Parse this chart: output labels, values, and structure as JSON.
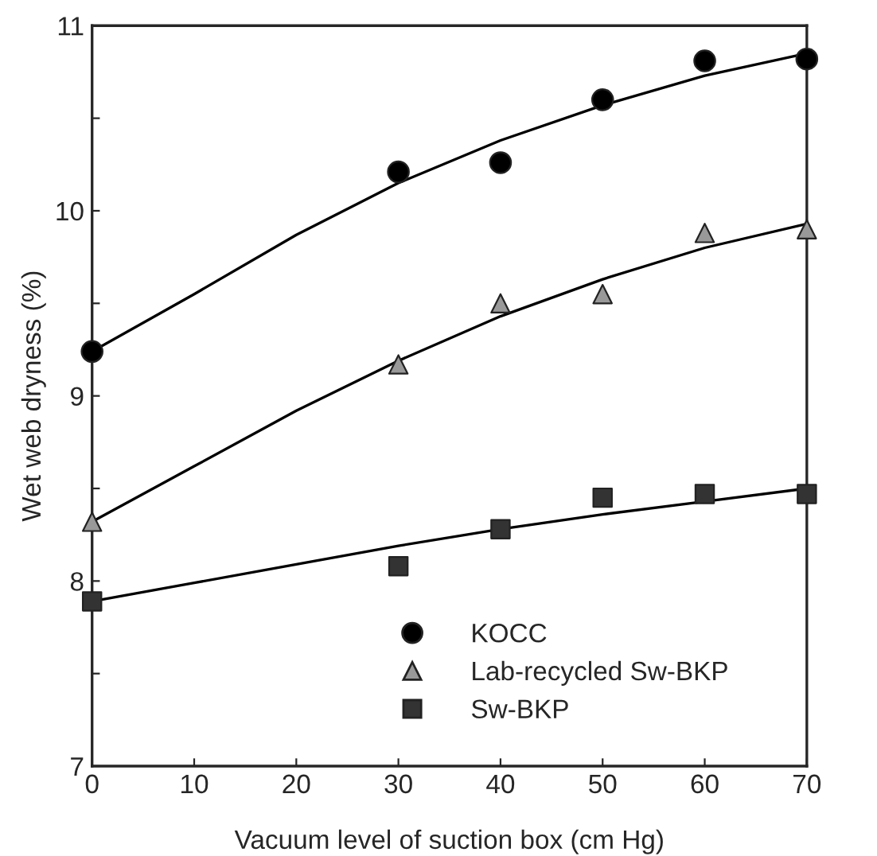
{
  "chart_data": {
    "type": "scatter",
    "xlabel": "Vacuum level of suction box (cm Hg)",
    "ylabel": "Wet web dryness (%)",
    "x": [
      0,
      30,
      40,
      50,
      60,
      70
    ],
    "series": [
      {
        "name": "KOCC",
        "color": "#000000",
        "marker": "circle",
        "values": [
          9.24,
          10.21,
          10.26,
          10.6,
          10.81,
          10.82
        ]
      },
      {
        "name": "Lab-recycled Sw-BKP",
        "color": "#999999",
        "marker": "triangle",
        "values": [
          8.32,
          9.17,
          9.5,
          9.55,
          9.88,
          9.9
        ]
      },
      {
        "name": "Sw-BKP",
        "color": "#333333",
        "marker": "square",
        "values": [
          7.89,
          8.08,
          8.28,
          8.45,
          8.47,
          8.47
        ]
      },
      {
        "type": "line",
        "color": "#000000",
        "x": [
          0,
          10,
          20,
          30,
          40,
          50,
          60,
          70
        ],
        "values": [
          9.24,
          9.55,
          9.87,
          10.15,
          10.38,
          10.57,
          10.73,
          10.85
        ]
      },
      {
        "type": "line",
        "color": "#000000",
        "x": [
          0,
          10,
          20,
          30,
          40,
          50,
          60,
          70
        ],
        "values": [
          8.32,
          8.62,
          8.92,
          9.19,
          9.43,
          9.63,
          9.8,
          9.93
        ]
      },
      {
        "type": "line",
        "color": "#000000",
        "x": [
          0,
          10,
          20,
          30,
          40,
          50,
          60,
          70
        ],
        "values": [
          7.89,
          7.99,
          8.09,
          8.19,
          8.28,
          8.36,
          8.43,
          8.5
        ]
      }
    ],
    "xlim": [
      0,
      70
    ],
    "xticks": [
      0,
      10,
      20,
      30,
      40,
      50,
      60,
      70
    ],
    "ylim": [
      7,
      11
    ],
    "yticks": [
      7,
      {
        "value": 7.5,
        "label": null
      },
      8,
      {
        "value": 8.5,
        "label": null
      },
      9,
      {
        "value": 9.5,
        "label": null
      },
      10,
      {
        "value": 10.5,
        "label": null
      },
      11
    ],
    "grid": false,
    "legend": "bottom right"
  }
}
